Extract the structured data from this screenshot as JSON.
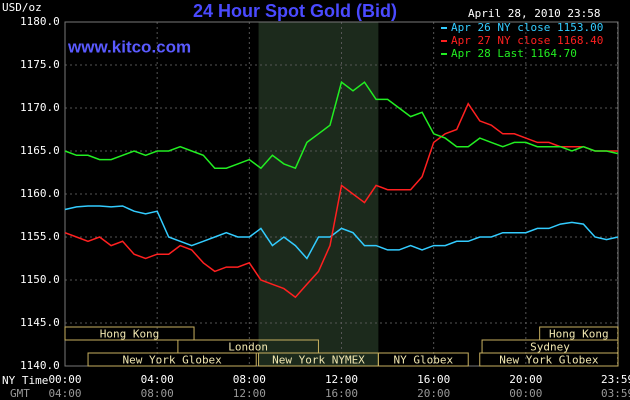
{
  "chart_data": {
    "type": "line",
    "title": "24 Hour Spot Gold (Bid)",
    "site": "www.kitco.com",
    "timestamp": "April 28, 2010 23:58",
    "ylabel": "USD/oz",
    "xlabel": "NY Time",
    "x2label": "GMT",
    "x": [
      0,
      0.5,
      1,
      1.5,
      2,
      2.5,
      3,
      3.5,
      4,
      4.5,
      5,
      5.5,
      6,
      6.5,
      7,
      7.5,
      8,
      8.5,
      9,
      9.5,
      10,
      10.5,
      11,
      11.5,
      12,
      12.5,
      13,
      13.5,
      14,
      14.5,
      15,
      15.5,
      16,
      16.5,
      17,
      17.5,
      18,
      18.5,
      19,
      19.5,
      20,
      20.5,
      21,
      21.5,
      22,
      22.5,
      23,
      23.5,
      24
    ],
    "series": [
      {
        "name": "Apr 26 NY close 1153.00",
        "color": "#33ccff",
        "values": [
          1158.2,
          1158.5,
          1158.6,
          1158.6,
          1158.5,
          1158.6,
          1158,
          1157.7,
          1158,
          1155,
          1154.5,
          1154,
          1154.5,
          1155,
          1155.5,
          1155,
          1155,
          1156,
          1154,
          1155,
          1154,
          1152.5,
          1155,
          1155,
          1156,
          1155.5,
          1154,
          1154,
          1153.5,
          1153.5,
          1154,
          1153.5,
          1154,
          1154,
          1154.5,
          1154.5,
          1155,
          1155,
          1155.5,
          1155.5,
          1155.5,
          1156,
          1156,
          1156.5,
          1156.7,
          1156.5,
          1155,
          1154.7,
          1155
        ]
      },
      {
        "name": "Apr 27 NY close 1168.40",
        "color": "#ff2020",
        "values": [
          1155.5,
          1155,
          1154.5,
          1155,
          1154,
          1154.5,
          1153,
          1152.5,
          1153,
          1153,
          1154,
          1153.5,
          1152,
          1151,
          1151.5,
          1151.5,
          1152,
          1150,
          1149.5,
          1149,
          1148,
          1149.5,
          1151,
          1154,
          1161,
          1160,
          1159,
          1161,
          1160.5,
          1160.5,
          1160.5,
          1162,
          1166,
          1167,
          1167.5,
          1170.5,
          1168.5,
          1168,
          1167,
          1167,
          1166.5,
          1166,
          1166,
          1165.5,
          1165.5,
          1165.5,
          1165,
          1165,
          1165
        ]
      },
      {
        "name": "Apr 28 Last 1164.70",
        "color": "#22ee22",
        "values": [
          1165,
          1164.5,
          1164.5,
          1164,
          1164,
          1164.5,
          1165,
          1164.5,
          1165,
          1165,
          1165.5,
          1165,
          1164.5,
          1163,
          1163,
          1163.5,
          1164,
          1163,
          1164.5,
          1163.5,
          1163,
          1166,
          1167,
          1168,
          1173,
          1172,
          1173,
          1171,
          1171,
          1170,
          1169,
          1169.5,
          1167,
          1166.5,
          1165.5,
          1165.5,
          1166.5,
          1166,
          1165.5,
          1166,
          1166,
          1165.5,
          1165.5,
          1165.5,
          1165,
          1165.5,
          1165,
          1165,
          1164.7
        ]
      }
    ],
    "xlim": [
      0,
      24
    ],
    "xticks": [
      {
        "value": 0,
        "label": "00:00"
      },
      {
        "value": 4,
        "label": "04:00"
      },
      {
        "value": 8,
        "label": "08:00"
      },
      {
        "value": 12,
        "label": "12:00"
      },
      {
        "value": 16,
        "label": "16:00"
      },
      {
        "value": 20,
        "label": "20:00"
      },
      {
        "value": 23.98,
        "label": "23:59"
      }
    ],
    "x2ticks": [
      {
        "value": 0,
        "label": "04:00"
      },
      {
        "value": 4,
        "label": "08:00"
      },
      {
        "value": 8,
        "label": "12:00"
      },
      {
        "value": 12,
        "label": "16:00"
      },
      {
        "value": 16,
        "label": "20:00"
      },
      {
        "value": 20,
        "label": "00:00"
      },
      {
        "value": 23.98,
        "label": "03:59"
      }
    ],
    "ylim": [
      1140,
      1180
    ],
    "yticks": [
      {
        "value": 1140,
        "label": "1140.0"
      },
      {
        "value": 1145,
        "label": "1145.0"
      },
      {
        "value": 1150,
        "label": "1150.0"
      },
      {
        "value": 1155,
        "label": "1155.0"
      },
      {
        "value": 1160,
        "label": "1160.0"
      },
      {
        "value": 1165,
        "label": "1165.0"
      },
      {
        "value": 1170,
        "label": "1170.0"
      },
      {
        "value": 1175,
        "label": "1175.0"
      },
      {
        "value": 1180,
        "label": "1180.0"
      }
    ],
    "grid": true,
    "sessions": [
      {
        "label": "Hong Kong",
        "start": 0,
        "end": 5.6
      },
      {
        "label": "London",
        "start": 4.9,
        "end": 11
      },
      {
        "label": "New York Globex",
        "start": 1,
        "end": 8.3
      },
      {
        "label": "New York NYMEX",
        "start": 8.4,
        "end": 13.6,
        "shade": true
      },
      {
        "label": "NY Globex",
        "start": 13.6,
        "end": 17.5
      },
      {
        "label": "Hong Kong",
        "start": 20.6,
        "end": 24
      },
      {
        "label": "Sydney",
        "start": 18.1,
        "end": 24
      },
      {
        "label": "New York Globex",
        "start": 18,
        "end": 24
      }
    ]
  }
}
